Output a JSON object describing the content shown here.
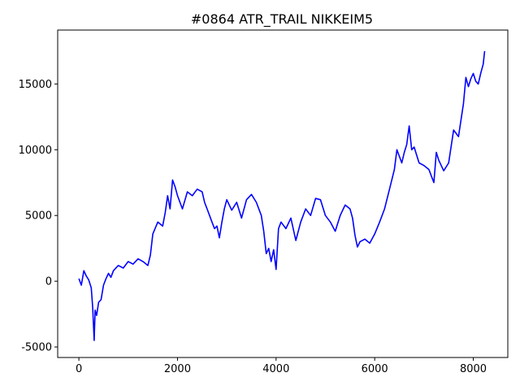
{
  "chart_data": {
    "type": "line",
    "title": "#0864 ATR_TRAIL NIKKEIM5",
    "xlabel": "",
    "ylabel": "",
    "xlim": [
      -430,
      8700
    ],
    "ylim": [
      -5800,
      19100
    ],
    "x_ticks": [
      0,
      2000,
      4000,
      6000,
      8000
    ],
    "y_ticks": [
      -5000,
      0,
      5000,
      10000,
      15000
    ],
    "grid": false,
    "legend": "none",
    "series": [
      {
        "color": "#0000ff",
        "x": [
          0,
          50,
          100,
          150,
          200,
          250,
          280,
          310,
          330,
          360,
          400,
          450,
          500,
          550,
          600,
          650,
          700,
          800,
          900,
          1000,
          1100,
          1200,
          1300,
          1400,
          1450,
          1500,
          1600,
          1700,
          1750,
          1800,
          1850,
          1900,
          1950,
          2000,
          2100,
          2200,
          2300,
          2400,
          2500,
          2550,
          2600,
          2650,
          2700,
          2750,
          2800,
          2850,
          2900,
          2950,
          3000,
          3100,
          3200,
          3300,
          3400,
          3500,
          3600,
          3700,
          3750,
          3800,
          3850,
          3900,
          3950,
          4000,
          4050,
          4100,
          4200,
          4300,
          4400,
          4500,
          4600,
          4700,
          4800,
          4900,
          5000,
          5100,
          5200,
          5300,
          5400,
          5500,
          5550,
          5600,
          5650,
          5700,
          5800,
          5900,
          6000,
          6100,
          6200,
          6300,
          6400,
          6450,
          6500,
          6550,
          6600,
          6650,
          6700,
          6750,
          6800,
          6900,
          7000,
          7100,
          7150,
          7200,
          7250,
          7300,
          7400,
          7500,
          7600,
          7700,
          7800,
          7850,
          7900,
          7950,
          8000,
          8050,
          8100,
          8150,
          8200,
          8230
        ],
        "y": [
          200,
          -300,
          800,
          400,
          100,
          -500,
          -2000,
          -4500,
          -2200,
          -2600,
          -1600,
          -1400,
          -300,
          200,
          600,
          300,
          800,
          1200,
          1000,
          1500,
          1300,
          1700,
          1500,
          1200,
          2000,
          3600,
          4500,
          4200,
          5200,
          6500,
          5500,
          7700,
          7200,
          6500,
          5500,
          6800,
          6500,
          7000,
          6800,
          6000,
          5500,
          5000,
          4500,
          4000,
          4200,
          3300,
          4500,
          5500,
          6200,
          5400,
          6000,
          4800,
          6200,
          6600,
          6000,
          5000,
          3800,
          2100,
          2500,
          1500,
          2400,
          900,
          4000,
          4500,
          4000,
          4800,
          3100,
          4500,
          5500,
          5000,
          6300,
          6200,
          5000,
          4500,
          3800,
          5000,
          5800,
          5500,
          4800,
          3500,
          2600,
          3000,
          3200,
          2900,
          3600,
          4500,
          5500,
          7000,
          8500,
          10000,
          9500,
          9000,
          9800,
          10400,
          11800,
          10000,
          10200,
          9000,
          8800,
          8500,
          8000,
          7500,
          9800,
          9200,
          8400,
          9000,
          11500,
          11000,
          13500,
          15500,
          14800,
          15400,
          15800,
          15200,
          15000,
          15800,
          16500,
          17500
        ]
      }
    ]
  }
}
